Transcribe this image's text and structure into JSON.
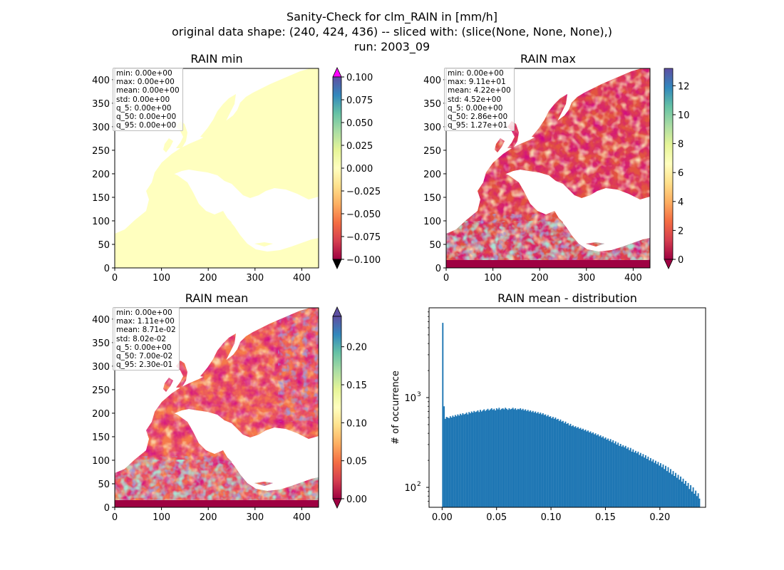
{
  "figure": {
    "title_lines": [
      "Sanity-Check for clm_RAIN in [mm/h]",
      "original data shape: (240, 424, 436) -- sliced with: (slice(None, None, None),)",
      "run: 2003_09"
    ]
  },
  "colors": {
    "cmap_spectral": [
      "#9e0142",
      "#d53e4f",
      "#f46d43",
      "#fdae61",
      "#fee08b",
      "#ffffbf",
      "#e6f598",
      "#abdda4",
      "#66c2a5",
      "#3288bd",
      "#5e4fa2"
    ],
    "over_min_panel": "#ff00ff",
    "under_min_panel": "#000000",
    "histogram_bar": "#1f77b4"
  },
  "chart_data": [
    {
      "type": "heatmap",
      "title": "RAIN min",
      "xlim": [
        0,
        436
      ],
      "ylim": [
        0,
        424
      ],
      "xticks": [
        "0",
        "100",
        "200",
        "300",
        "400"
      ],
      "yticks": [
        "0",
        "50",
        "100",
        "150",
        "200",
        "250",
        "300",
        "350",
        "400"
      ],
      "colorbar": {
        "min": -0.1,
        "max": 0.1,
        "extend": "both",
        "ticks": [
          "−0.100",
          "−0.075",
          "−0.050",
          "−0.025",
          "0.000",
          "0.025",
          "0.050",
          "0.075",
          "0.100"
        ]
      },
      "stats": [
        "min: 0.00e+00",
        "max: 0.00e+00",
        "mean: 0.00e+00",
        "std: 0.00e+00",
        "q_5: 0.00e+00",
        "q_50: 0.00e+00",
        "q_95: 0.00e+00"
      ]
    },
    {
      "type": "heatmap",
      "title": "RAIN max",
      "xlim": [
        0,
        436
      ],
      "ylim": [
        0,
        424
      ],
      "xticks": [
        "0",
        "100",
        "200",
        "300",
        "400"
      ],
      "yticks": [
        "0",
        "50",
        "100",
        "150",
        "200",
        "250",
        "300",
        "350",
        "400"
      ],
      "colorbar": {
        "min": 0,
        "max": 13.2,
        "extend": "min",
        "ticks": [
          "0",
          "2",
          "4",
          "6",
          "8",
          "10",
          "12"
        ]
      },
      "stats": [
        "min: 0.00e+00",
        "max: 9.11e+01",
        "mean: 4.22e+00",
        "std: 4.52e+00",
        "q_5: 0.00e+00",
        "q_50: 2.86e+00",
        "q_95: 1.27e+01"
      ]
    },
    {
      "type": "heatmap",
      "title": "RAIN mean",
      "xlim": [
        0,
        436
      ],
      "ylim": [
        0,
        424
      ],
      "xticks": [
        "0",
        "100",
        "200",
        "300",
        "400"
      ],
      "yticks": [
        "0",
        "50",
        "100",
        "150",
        "200",
        "250",
        "300",
        "350",
        "400"
      ],
      "colorbar": {
        "min": 0,
        "max": 0.24,
        "extend": "both",
        "ticks": [
          "0.00",
          "0.05",
          "0.10",
          "0.15",
          "0.20"
        ]
      },
      "stats": [
        "min: 0.00e+00",
        "max: 1.11e+00",
        "mean: 8.71e-02",
        "std: 8.02e-02",
        "q_5: 0.00e+00",
        "q_50: 7.00e-02",
        "q_95: 2.30e-01"
      ]
    },
    {
      "type": "bar",
      "title": "RAIN mean - distribution",
      "xlabel": "",
      "ylabel": "# of occurrence",
      "yscale": "log",
      "xlim": [
        -0.012,
        0.242
      ],
      "ylim": [
        60,
        10000
      ],
      "xticks": [
        "0.00",
        "0.05",
        "0.10",
        "0.15",
        "0.20"
      ],
      "yticks": [
        "10",
        "10"
      ],
      "ytick_exponents": [
        "2",
        "3"
      ],
      "bin_start": 0.0,
      "bin_width": 0.00115,
      "values": [
        6800,
        800,
        580,
        610,
        600,
        590,
        620,
        600,
        630,
        610,
        640,
        620,
        650,
        630,
        660,
        640,
        670,
        650,
        660,
        680,
        650,
        690,
        670,
        700,
        680,
        710,
        690,
        700,
        720,
        690,
        730,
        700,
        720,
        740,
        710,
        730,
        750,
        720,
        740,
        760,
        730,
        750,
        720,
        760,
        740,
        770,
        730,
        750,
        760,
        740,
        770,
        750,
        730,
        760,
        740,
        750,
        770,
        740,
        760,
        730,
        750,
        740,
        760,
        730,
        750,
        720,
        740,
        710,
        730,
        700,
        720,
        690,
        710,
        680,
        700,
        670,
        690,
        660,
        680,
        650,
        670,
        640,
        650,
        620,
        640,
        610,
        620,
        590,
        610,
        580,
        600,
        570,
        580,
        550,
        570,
        540,
        550,
        520,
        540,
        510,
        520,
        490,
        510,
        480,
        490,
        470,
        480,
        460,
        470,
        450,
        460,
        440,
        450,
        430,
        440,
        420,
        430,
        410,
        420,
        400,
        410,
        390,
        400,
        380,
        390,
        370,
        380,
        360,
        370,
        350,
        360,
        340,
        350,
        330,
        345,
        320,
        335,
        310,
        325,
        300,
        315,
        290,
        305,
        285,
        295,
        280,
        290,
        270,
        280,
        260,
        275,
        250,
        265,
        245,
        255,
        240,
        250,
        230,
        242,
        222,
        235,
        215,
        228,
        208,
        220,
        200,
        212,
        195,
        205,
        188,
        198,
        182,
        192,
        175,
        186,
        168,
        180,
        160,
        174,
        152,
        168,
        146,
        160,
        140,
        152,
        134,
        145,
        128,
        138,
        122,
        132,
        116,
        125,
        110,
        118,
        104,
        112,
        96,
        106,
        90,
        100,
        85,
        92,
        80,
        86,
        75
      ]
    }
  ]
}
